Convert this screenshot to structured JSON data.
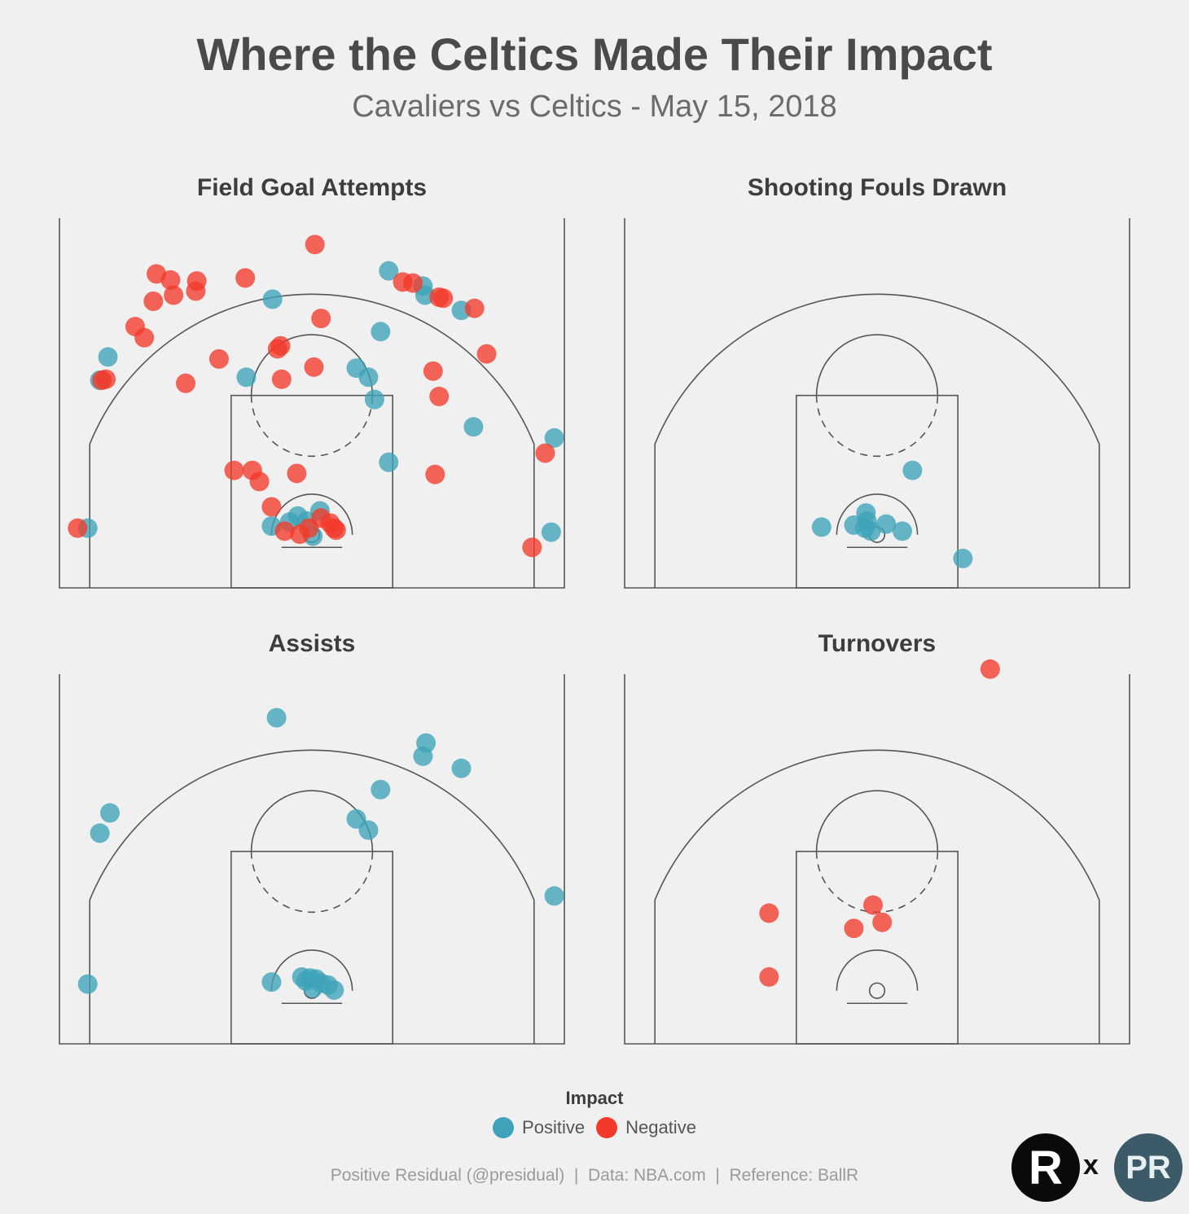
{
  "title": "Where the Celtics Made Their Impact",
  "subtitle": "Cavaliers vs Celtics - May 15, 2018",
  "colors": {
    "positive": "#3ea3b8",
    "negative": "#f23a2a",
    "lines": "#555555",
    "background": "#f0f0f0"
  },
  "legend": {
    "title": "Impact",
    "items": [
      {
        "label": "Positive",
        "key": "positive"
      },
      {
        "label": "Negative",
        "key": "negative"
      }
    ]
  },
  "caption": "Positive Residual (@presidual)  |  Data: NBA.com  |  Reference: BallR",
  "logos": {
    "r_logo_text": "R",
    "separator": "x",
    "pr_logo_text": "PR"
  },
  "chart_data": [
    {
      "type": "scatter",
      "title": "Field Goal Attempts",
      "xlabel": "",
      "ylabel": "",
      "xlim": [
        -25,
        25
      ],
      "ylim": [
        0,
        36.5
      ],
      "series": [
        {
          "name": "Positive",
          "key": "positive",
          "points": [
            [
              -3.9,
              28.5
            ],
            [
              7.6,
              31.3
            ],
            [
              11.0,
              29.8
            ],
            [
              11.2,
              28.9
            ],
            [
              14.8,
              27.4
            ],
            [
              6.8,
              25.3
            ],
            [
              4.4,
              21.7
            ],
            [
              5.6,
              20.8
            ],
            [
              6.2,
              18.6
            ],
            [
              -20.2,
              22.8
            ],
            [
              -21.0,
              20.5
            ],
            [
              -6.5,
              20.8
            ],
            [
              16.0,
              15.9
            ],
            [
              7.6,
              12.4
            ],
            [
              24.0,
              14.8
            ],
            [
              23.7,
              5.5
            ],
            [
              -22.2,
              5.9
            ],
            [
              -4.0,
              6.1
            ],
            [
              -2.2,
              6.5
            ],
            [
              -0.5,
              6.6
            ],
            [
              0.8,
              7.6
            ],
            [
              0.1,
              5.1
            ],
            [
              -1.4,
              7.1
            ]
          ]
        },
        {
          "name": "Negative",
          "key": "negative",
          "points": [
            [
              0.3,
              33.9
            ],
            [
              -14.0,
              30.4
            ],
            [
              -11.4,
              30.3
            ],
            [
              -6.6,
              30.6
            ],
            [
              -15.7,
              28.3
            ],
            [
              -13.7,
              28.9
            ],
            [
              -11.5,
              29.3
            ],
            [
              -15.4,
              31.0
            ],
            [
              -17.5,
              25.8
            ],
            [
              -16.6,
              24.7
            ],
            [
              9.0,
              30.2
            ],
            [
              10.0,
              30.1
            ],
            [
              12.6,
              28.7
            ],
            [
              13.0,
              28.6
            ],
            [
              16.1,
              27.6
            ],
            [
              0.9,
              26.6
            ],
            [
              -3.4,
              23.6
            ],
            [
              -3.1,
              23.9
            ],
            [
              -9.2,
              22.6
            ],
            [
              0.2,
              21.8
            ],
            [
              -3.0,
              20.6
            ],
            [
              -12.5,
              20.2
            ],
            [
              -20.4,
              20.6
            ],
            [
              -20.8,
              20.5
            ],
            [
              17.3,
              23.1
            ],
            [
              12.0,
              21.4
            ],
            [
              12.6,
              18.9
            ],
            [
              23.1,
              13.3
            ],
            [
              12.2,
              11.2
            ],
            [
              -7.7,
              11.6
            ],
            [
              -5.9,
              11.6
            ],
            [
              -5.2,
              10.5
            ],
            [
              -1.5,
              11.3
            ],
            [
              -4.0,
              8.0
            ],
            [
              -2.7,
              5.6
            ],
            [
              -1.2,
              5.3
            ],
            [
              -0.3,
              5.9
            ],
            [
              0.9,
              6.9
            ],
            [
              1.8,
              6.4
            ],
            [
              2.2,
              5.9
            ],
            [
              2.4,
              5.7
            ],
            [
              -23.2,
              5.9
            ],
            [
              21.8,
              4.0
            ]
          ]
        }
      ]
    },
    {
      "type": "scatter",
      "title": "Shooting Fouls Drawn",
      "xlabel": "",
      "ylabel": "",
      "xlim": [
        -25,
        25
      ],
      "ylim": [
        0,
        36.5
      ],
      "series": [
        {
          "name": "Positive",
          "key": "positive",
          "points": [
            [
              3.5,
              11.6
            ],
            [
              -5.5,
              6.0
            ],
            [
              -2.3,
              6.2
            ],
            [
              -1.0,
              6.6
            ],
            [
              -1.2,
              5.9
            ],
            [
              -0.6,
              5.6
            ],
            [
              -1.1,
              7.4
            ],
            [
              0.9,
              6.3
            ],
            [
              2.5,
              5.6
            ],
            [
              8.5,
              2.9
            ]
          ]
        },
        {
          "name": "Negative",
          "key": "negative",
          "points": []
        }
      ]
    },
    {
      "type": "scatter",
      "title": "Assists",
      "xlabel": "",
      "ylabel": "",
      "xlim": [
        -25,
        25
      ],
      "ylim": [
        0,
        36.5
      ],
      "series": [
        {
          "name": "Positive",
          "key": "positive",
          "points": [
            [
              -3.5,
              32.2
            ],
            [
              11.3,
              29.7
            ],
            [
              11.0,
              28.4
            ],
            [
              14.8,
              27.2
            ],
            [
              6.8,
              25.1
            ],
            [
              4.4,
              22.2
            ],
            [
              5.6,
              21.1
            ],
            [
              -20.0,
              22.8
            ],
            [
              -21.0,
              20.8
            ],
            [
              24.0,
              14.6
            ],
            [
              -22.2,
              5.9
            ],
            [
              -4.0,
              6.1
            ],
            [
              -1.0,
              6.6
            ],
            [
              -0.2,
              6.5
            ],
            [
              0.4,
              6.4
            ],
            [
              0.9,
              6.0
            ],
            [
              1.6,
              5.8
            ],
            [
              2.2,
              5.3
            ],
            [
              0.1,
              5.5
            ],
            [
              -0.6,
              6.2
            ]
          ]
        },
        {
          "name": "Negative",
          "key": "negative",
          "points": []
        }
      ]
    },
    {
      "type": "scatter",
      "title": "Turnovers",
      "xlabel": "",
      "ylabel": "",
      "xlim": [
        -25,
        25
      ],
      "ylim": [
        0,
        36.5
      ],
      "series": [
        {
          "name": "Positive",
          "key": "positive",
          "points": []
        },
        {
          "name": "Negative",
          "key": "negative",
          "points": [
            [
              11.2,
              37.0
            ],
            [
              -10.7,
              12.9
            ],
            [
              -0.4,
              13.7
            ],
            [
              0.5,
              12.0
            ],
            [
              -2.3,
              11.4
            ],
            [
              -10.7,
              6.6
            ]
          ]
        }
      ]
    }
  ]
}
